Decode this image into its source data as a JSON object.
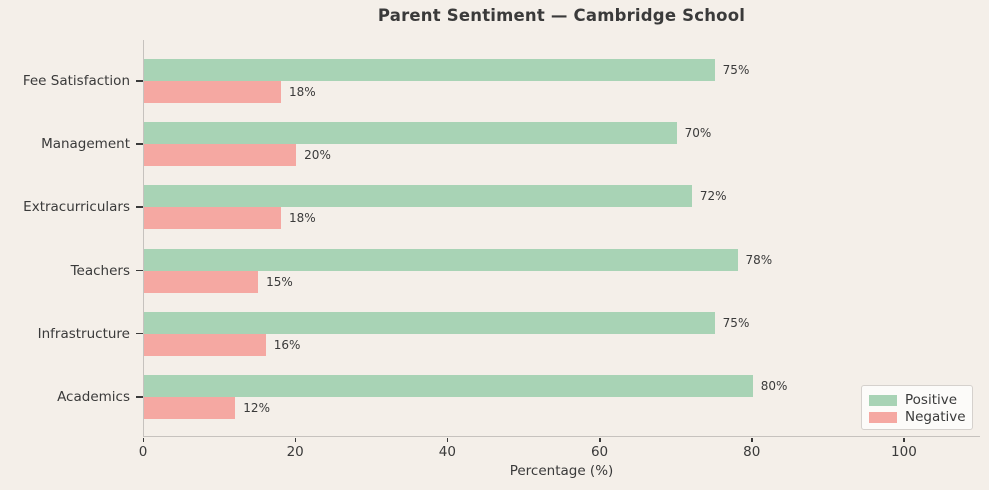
{
  "chart_data": {
    "type": "bar",
    "orientation": "horizontal",
    "title": "Parent Sentiment — Cambridge School",
    "categories": [
      "Fee Satisfaction",
      "Management",
      "Extracurriculars",
      "Teachers",
      "Infrastructure",
      "Academics"
    ],
    "series": [
      {
        "name": "Positive",
        "color": "#a8d3b5",
        "values": [
          75,
          70,
          72,
          78,
          75,
          80
        ],
        "labels": [
          "75%",
          "70%",
          "72%",
          "78%",
          "75%",
          "80%"
        ]
      },
      {
        "name": "Negative",
        "color": "#f5a8a2",
        "values": [
          18,
          20,
          18,
          15,
          16,
          12
        ],
        "labels": [
          "18%",
          "20%",
          "18%",
          "15%",
          "16%",
          "12%"
        ]
      }
    ],
    "xlabel": "Percentage (%)",
    "x_ticks": [
      0,
      20,
      40,
      60,
      80,
      100
    ],
    "xlim": [
      0,
      110
    ],
    "grid": false,
    "legend": {
      "position": "lower-right",
      "entries": [
        {
          "label": "Positive",
          "color": "#a8d3b5"
        },
        {
          "label": "Negative",
          "color": "#f5a8a2"
        }
      ]
    }
  },
  "colors": {
    "background": "#f4efe9",
    "text": "#3a3a3a",
    "spine": "#c6c2be",
    "tick": "#3a3a3a",
    "legend_bg": "#fcfbf9",
    "legend_border": "#d5d1cd"
  }
}
